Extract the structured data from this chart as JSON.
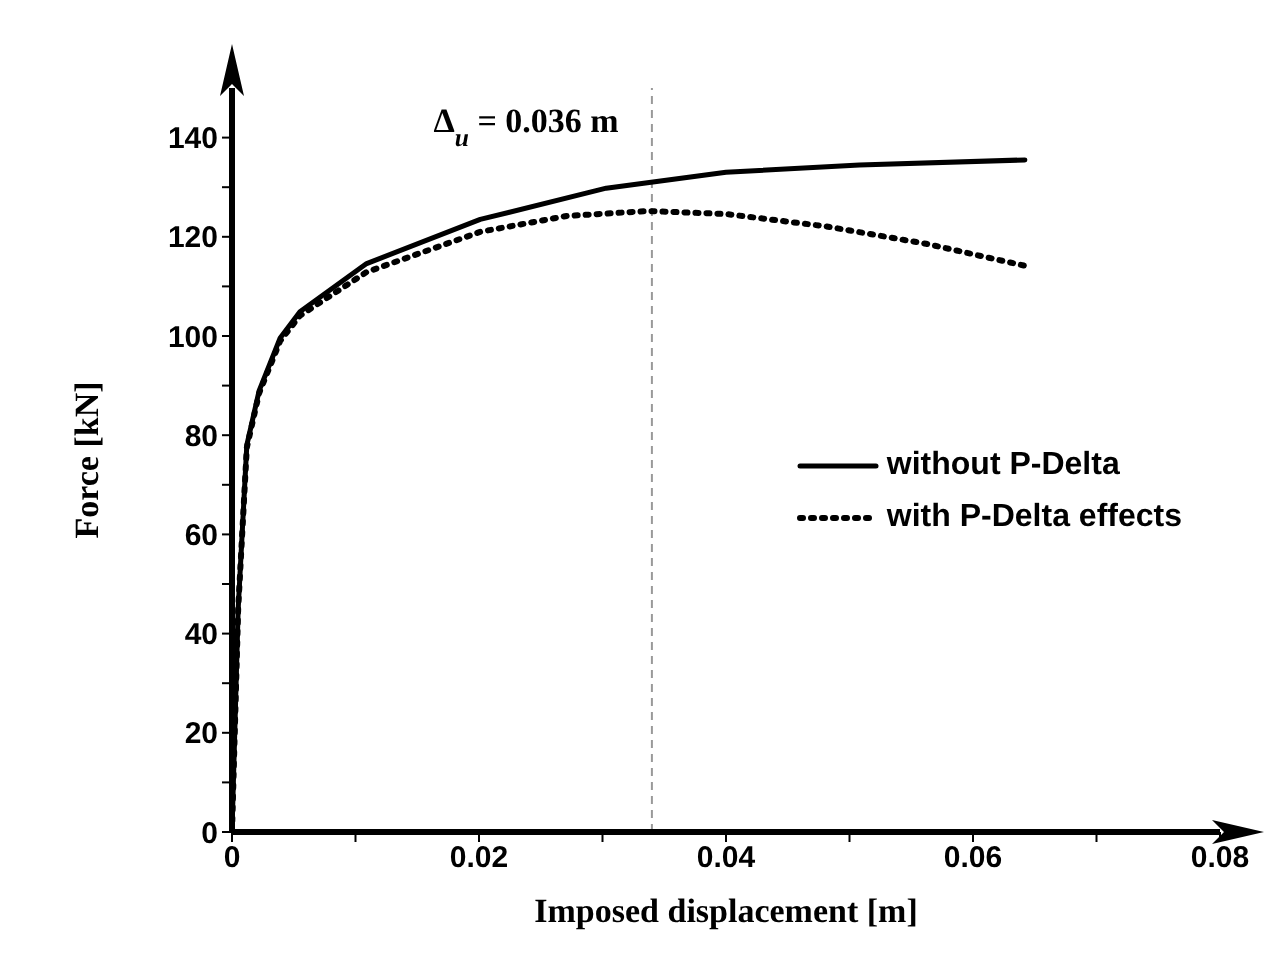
{
  "chart_data": {
    "type": "line",
    "xlabel": "Imposed displacement [m]",
    "ylabel": "Force [kN]",
    "xlim": [
      0,
      0.08
    ],
    "xticks": [
      {
        "value": 0,
        "label": "0"
      },
      {
        "value": 0.01,
        "label": null
      },
      {
        "value": 0.02,
        "label": "0.02"
      },
      {
        "value": 0.03,
        "label": null
      },
      {
        "value": 0.04,
        "label": "0.04"
      },
      {
        "value": 0.05,
        "label": null
      },
      {
        "value": 0.06,
        "label": "0.06"
      },
      {
        "value": 0.07,
        "label": null
      },
      {
        "value": 0.08,
        "label": "0.08"
      }
    ],
    "ylim": [
      0,
      150
    ],
    "yticks": [
      0,
      {
        "value": 10,
        "label": null
      },
      20,
      {
        "value": 30,
        "label": null
      },
      40,
      {
        "value": 50,
        "label": null
      },
      60,
      {
        "value": 70,
        "label": null
      },
      80,
      {
        "value": 90,
        "label": null
      },
      100,
      {
        "value": 110,
        "label": null
      },
      120,
      {
        "value": 130,
        "label": null
      },
      140
    ],
    "grid": false,
    "legend": "right",
    "marker": "none",
    "series": [
      {
        "name": "without P-Delta",
        "color": "#000000",
        "line_style": "solid",
        "x": [
          0,
          0.0005,
          0.0012,
          0.0022,
          0.0039,
          0.0055,
          0.0109,
          0.0201,
          0.0303,
          0.04,
          0.0508,
          0.0642
        ],
        "values": [
          0,
          45,
          78,
          89,
          99.6,
          104.9,
          114.6,
          123.5,
          129.8,
          133,
          134.5,
          135.5
        ]
      },
      {
        "name": "with P-Delta effects",
        "color": "#000000",
        "line_style": "dotted",
        "x": [
          0,
          0.0005,
          0.0012,
          0.0022,
          0.0039,
          0.0055,
          0.0109,
          0.0201,
          0.0271,
          0.0337,
          0.04,
          0.0481,
          0.0562,
          0.0643
        ],
        "values": [
          0,
          45,
          77.5,
          88.5,
          99,
          104.1,
          112.9,
          121,
          124.2,
          125.2,
          124.6,
          122.1,
          118.6,
          114.1
        ]
      }
    ],
    "annotations": [
      "Δ$_{u}$ = 0.036 m"
    ],
    "ref_lines": [
      {
        "axis": "x",
        "value": 0.034,
        "line_style": "dashed",
        "color": "#999999"
      }
    ]
  }
}
